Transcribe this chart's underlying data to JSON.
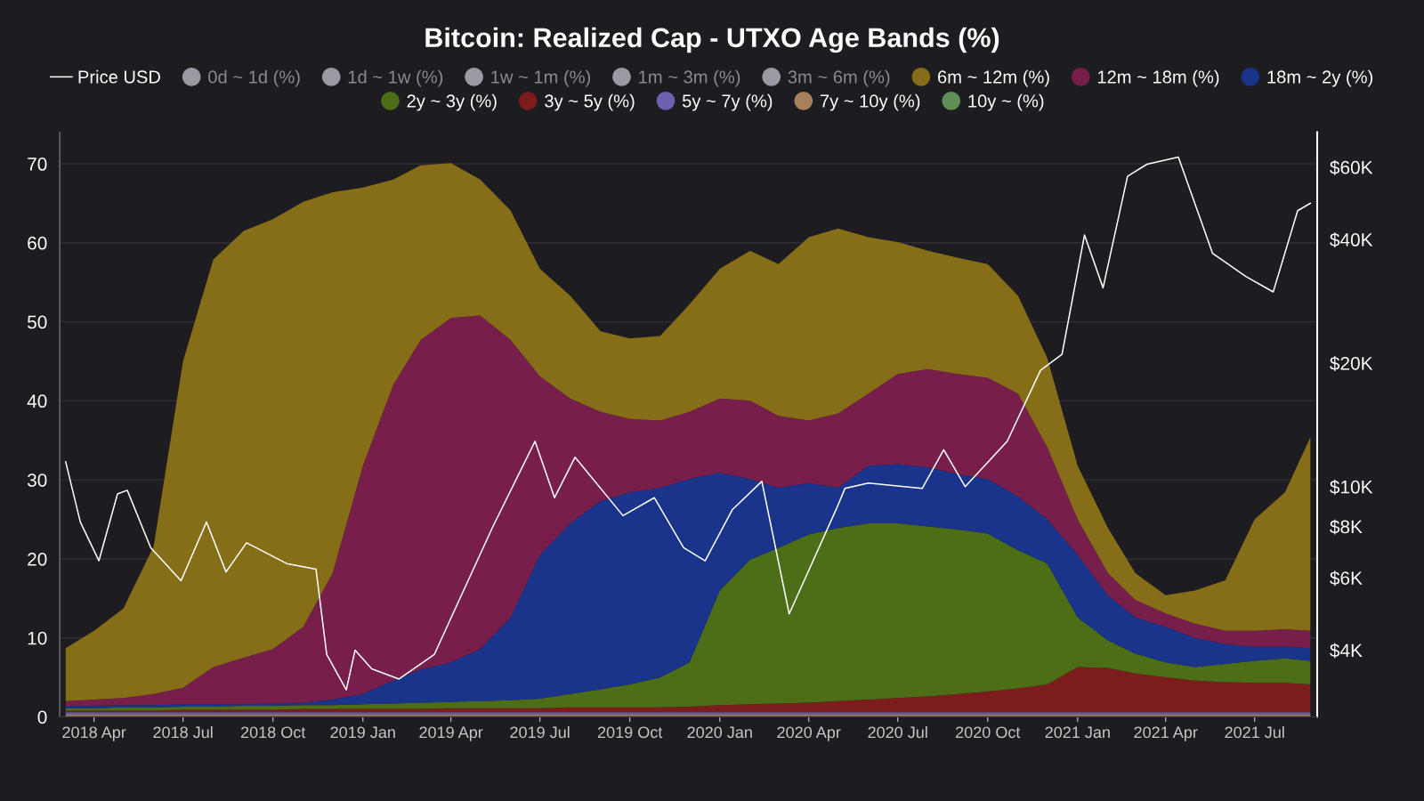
{
  "chart_data": {
    "type": "area",
    "stacked": true,
    "title": "Bitcoin: Realized Cap - UTXO Age Bands (%)",
    "x": [
      "2018-03-03",
      "2018-04-01",
      "2018-05-01",
      "2018-06-01",
      "2018-07-01",
      "2018-08-01",
      "2018-09-01",
      "2018-10-01",
      "2018-11-01",
      "2018-12-01",
      "2019-01-01",
      "2019-02-01",
      "2019-03-01",
      "2019-04-01",
      "2019-05-01",
      "2019-06-01",
      "2019-07-01",
      "2019-08-01",
      "2019-09-01",
      "2019-10-01",
      "2019-11-01",
      "2019-12-01",
      "2020-01-01",
      "2020-02-01",
      "2020-03-01",
      "2020-04-01",
      "2020-05-01",
      "2020-06-01",
      "2020-07-01",
      "2020-08-01",
      "2020-09-01",
      "2020-10-01",
      "2020-11-01",
      "2020-12-01",
      "2021-01-01",
      "2021-02-01",
      "2021-03-01",
      "2021-04-01",
      "2021-05-01",
      "2021-06-01",
      "2021-07-01",
      "2021-08-01",
      "2021-08-27"
    ],
    "series": [
      {
        "name": "10y ~ (%)",
        "color": "#5f8f55",
        "values": [
          0.1,
          0.1,
          0.1,
          0.1,
          0.1,
          0.1,
          0.1,
          0.1,
          0.1,
          0.1,
          0.1,
          0.1,
          0.1,
          0.1,
          0.1,
          0.1,
          0.1,
          0.1,
          0.1,
          0.1,
          0.1,
          0.1,
          0.1,
          0.1,
          0.1,
          0.1,
          0.1,
          0.1,
          0.1,
          0.1,
          0.1,
          0.1,
          0.1,
          0.1,
          0.1,
          0.1,
          0.1,
          0.1,
          0.1,
          0.1,
          0.1,
          0.1,
          0.1
        ]
      },
      {
        "name": "7y ~ 10y (%)",
        "color": "#a9805e",
        "values": [
          0.2,
          0.2,
          0.2,
          0.2,
          0.2,
          0.2,
          0.2,
          0.2,
          0.2,
          0.2,
          0.2,
          0.2,
          0.2,
          0.2,
          0.2,
          0.2,
          0.2,
          0.2,
          0.2,
          0.2,
          0.2,
          0.2,
          0.2,
          0.2,
          0.2,
          0.2,
          0.2,
          0.2,
          0.2,
          0.2,
          0.2,
          0.2,
          0.2,
          0.2,
          0.2,
          0.2,
          0.2,
          0.2,
          0.2,
          0.2,
          0.2,
          0.2,
          0.2
        ]
      },
      {
        "name": "5y ~ 7y (%)",
        "color": "#6f5fb0",
        "values": [
          0.3,
          0.3,
          0.3,
          0.3,
          0.3,
          0.3,
          0.3,
          0.3,
          0.3,
          0.3,
          0.3,
          0.3,
          0.3,
          0.3,
          0.3,
          0.3,
          0.3,
          0.3,
          0.3,
          0.3,
          0.3,
          0.3,
          0.3,
          0.3,
          0.3,
          0.3,
          0.3,
          0.3,
          0.3,
          0.3,
          0.3,
          0.3,
          0.3,
          0.3,
          0.3,
          0.3,
          0.3,
          0.3,
          0.3,
          0.3,
          0.3,
          0.3,
          0.3
        ]
      },
      {
        "name": "3y ~ 5y (%)",
        "color": "#7c1c1c",
        "values": [
          0.2,
          0.2,
          0.2,
          0.2,
          0.3,
          0.3,
          0.3,
          0.3,
          0.4,
          0.4,
          0.4,
          0.4,
          0.4,
          0.5,
          0.5,
          0.5,
          0.5,
          0.6,
          0.6,
          0.6,
          0.6,
          0.7,
          0.9,
          1.0,
          1.1,
          1.2,
          1.4,
          1.6,
          1.8,
          2.0,
          2.3,
          2.6,
          3.0,
          3.5,
          5.7,
          5.6,
          4.9,
          4.4,
          4.0,
          3.8,
          3.7,
          3.7,
          3.5
        ]
      },
      {
        "name": "2y ~ 3y (%)",
        "color": "#4b6e17",
        "values": [
          0.3,
          0.3,
          0.4,
          0.4,
          0.4,
          0.4,
          0.5,
          0.5,
          0.5,
          0.5,
          0.6,
          0.7,
          0.8,
          0.8,
          0.9,
          1.0,
          1.2,
          1.7,
          2.3,
          2.9,
          3.8,
          5.6,
          14.5,
          18.3,
          19.7,
          21.3,
          21.9,
          22.3,
          22.1,
          21.5,
          20.8,
          20.0,
          17.5,
          15.3,
          6.3,
          3.5,
          2.5,
          1.9,
          1.7,
          2.3,
          2.8,
          3.1,
          3.0
        ]
      },
      {
        "name": "18m ~ 2y (%)",
        "color": "#19348a",
        "values": [
          0.3,
          0.3,
          0.3,
          0.3,
          0.3,
          0.3,
          0.2,
          0.3,
          0.3,
          0.7,
          1.3,
          2.9,
          4.2,
          5.0,
          6.6,
          10.5,
          18.2,
          21.6,
          23.8,
          24.3,
          24.0,
          23.2,
          14.9,
          10.2,
          7.6,
          6.5,
          5.1,
          7.3,
          7.5,
          7.5,
          7.0,
          6.9,
          6.8,
          5.6,
          7.9,
          5.7,
          4.6,
          4.5,
          3.7,
          2.5,
          1.8,
          1.5,
          1.6
        ]
      },
      {
        "name": "12m ~ 18m (%)",
        "color": "#781e4b",
        "values": [
          0.6,
          0.8,
          0.9,
          1.4,
          2.1,
          4.7,
          5.9,
          6.9,
          9.6,
          16.0,
          28.9,
          37.4,
          41.7,
          43.6,
          42.2,
          35.1,
          22.6,
          15.8,
          11.3,
          9.3,
          8.5,
          8.5,
          9.4,
          9.9,
          9.1,
          7.9,
          9.4,
          9.1,
          11.4,
          12.4,
          12.7,
          12.8,
          13.0,
          9.1,
          4.5,
          2.8,
          2.2,
          1.7,
          1.8,
          1.7,
          2.0,
          2.2,
          2.2
        ]
      },
      {
        "name": "6m ~ 12m (%)",
        "color": "#866d18",
        "values": [
          6.7,
          8.7,
          11.3,
          18.7,
          41.3,
          51.6,
          54.0,
          54.4,
          53.8,
          48.2,
          35.2,
          26.0,
          22.1,
          19.6,
          17.2,
          16.4,
          13.6,
          13.0,
          10.2,
          10.2,
          10.7,
          13.6,
          16.4,
          19.0,
          19.2,
          23.2,
          23.4,
          19.8,
          16.7,
          15.0,
          14.7,
          14.4,
          12.4,
          11.3,
          6.8,
          5.7,
          3.4,
          2.3,
          4.2,
          6.4,
          14.1,
          17.3,
          24.5
        ]
      },
      {
        "name": "3m ~ 6m (%)",
        "color": "#9a9aa2",
        "values": [
          null,
          null,
          null,
          null,
          null,
          null,
          null,
          null,
          null,
          null,
          null,
          null,
          null,
          null,
          null,
          null,
          null,
          null,
          null,
          null,
          null,
          null,
          null,
          null,
          null,
          null,
          null,
          null,
          null,
          null,
          null,
          null,
          null,
          null,
          null,
          null,
          null,
          null,
          null,
          null,
          null,
          null,
          null
        ]
      },
      {
        "name": "1m ~ 3m (%)",
        "color": "#9a9aa2",
        "values": [
          null,
          null,
          null,
          null,
          null,
          null,
          null,
          null,
          null,
          null,
          null,
          null,
          null,
          null,
          null,
          null,
          null,
          null,
          null,
          null,
          null,
          null,
          null,
          null,
          null,
          null,
          null,
          null,
          null,
          null,
          null,
          null,
          null,
          null,
          null,
          null,
          null,
          null,
          null,
          null,
          null,
          null,
          null
        ]
      },
      {
        "name": "1w ~ 1m (%)",
        "color": "#9a9aa2",
        "values": [
          null,
          null,
          null,
          null,
          null,
          null,
          null,
          null,
          null,
          null,
          null,
          null,
          null,
          null,
          null,
          null,
          null,
          null,
          null,
          null,
          null,
          null,
          null,
          null,
          null,
          null,
          null,
          null,
          null,
          null,
          null,
          null,
          null,
          null,
          null,
          null,
          null,
          null,
          null,
          null,
          null,
          null,
          null
        ]
      },
      {
        "name": "1d ~ 1w (%)",
        "color": "#9a9aa2",
        "values": [
          null,
          null,
          null,
          null,
          null,
          null,
          null,
          null,
          null,
          null,
          null,
          null,
          null,
          null,
          null,
          null,
          null,
          null,
          null,
          null,
          null,
          null,
          null,
          null,
          null,
          null,
          null,
          null,
          null,
          null,
          null,
          null,
          null,
          null,
          null,
          null,
          null,
          null,
          null,
          null,
          null,
          null,
          null
        ]
      },
      {
        "name": "0d ~ 1d (%)",
        "color": "#9a9aa2",
        "values": [
          null,
          null,
          null,
          null,
          null,
          null,
          null,
          null,
          null,
          null,
          null,
          null,
          null,
          null,
          null,
          null,
          null,
          null,
          null,
          null,
          null,
          null,
          null,
          null,
          null,
          null,
          null,
          null,
          null,
          null,
          null,
          null,
          null,
          null,
          null,
          null,
          null,
          null,
          null,
          null,
          null,
          null,
          null
        ]
      },
      {
        "name": "Price USD",
        "type": "line",
        "axis": "y2",
        "color": "#ffffff",
        "x": [
          "2018-03-03",
          "2018-03-18",
          "2018-04-06",
          "2018-04-25",
          "2018-05-05",
          "2018-05-29",
          "2018-06-29",
          "2018-07-25",
          "2018-08-14",
          "2018-09-04",
          "2018-10-15",
          "2018-11-14",
          "2018-11-25",
          "2018-12-15",
          "2018-12-24",
          "2019-01-10",
          "2019-02-07",
          "2019-03-15",
          "2019-04-03",
          "2019-05-14",
          "2019-06-26",
          "2019-07-16",
          "2019-08-06",
          "2019-09-24",
          "2019-10-26",
          "2019-11-25",
          "2019-12-17",
          "2020-01-14",
          "2020-02-13",
          "2020-03-12",
          "2020-04-29",
          "2020-05-08",
          "2020-06-01",
          "2020-07-26",
          "2020-08-17",
          "2020-09-08",
          "2020-10-21",
          "2020-11-24",
          "2020-12-16",
          "2021-01-08",
          "2021-01-27",
          "2021-02-21",
          "2021-03-13",
          "2021-04-14",
          "2021-05-19",
          "2021-06-22",
          "2021-07-20",
          "2021-08-14",
          "2021-08-27"
        ],
        "values": [
          11500,
          8200,
          6600,
          9600,
          9800,
          7100,
          5900,
          8200,
          6200,
          7300,
          6500,
          6300,
          3900,
          3200,
          4000,
          3600,
          3400,
          3900,
          4900,
          8000,
          12900,
          9400,
          11800,
          8500,
          9400,
          7100,
          6600,
          8800,
          10300,
          4900,
          8800,
          9900,
          10200,
          9900,
          12300,
          10000,
          12900,
          19200,
          21000,
          41000,
          30500,
          57000,
          61000,
          63500,
          37000,
          32500,
          29800,
          47000,
          49000
        ]
      }
    ],
    "xlim": [
      "2018-02-25",
      "2021-09-03"
    ],
    "xticks": [
      {
        "value": "2018-04-01",
        "label": "2018 Apr"
      },
      {
        "value": "2018-07-01",
        "label": "2018 Jul"
      },
      {
        "value": "2018-10-01",
        "label": "2018 Oct"
      },
      {
        "value": "2019-01-01",
        "label": "2019 Jan"
      },
      {
        "value": "2019-04-01",
        "label": "2019 Apr"
      },
      {
        "value": "2019-07-01",
        "label": "2019 Jul"
      },
      {
        "value": "2019-10-01",
        "label": "2019 Oct"
      },
      {
        "value": "2020-01-01",
        "label": "2020 Jan"
      },
      {
        "value": "2020-04-01",
        "label": "2020 Apr"
      },
      {
        "value": "2020-07-01",
        "label": "2020 Jul"
      },
      {
        "value": "2020-10-01",
        "label": "2020 Oct"
      },
      {
        "value": "2021-01-01",
        "label": "2021 Jan"
      },
      {
        "value": "2021-04-01",
        "label": "2021 Apr"
      },
      {
        "value": "2021-07-01",
        "label": "2021 Jul"
      }
    ],
    "ylim": [
      0,
      74
    ],
    "yticks": [
      0,
      10,
      20,
      30,
      40,
      50,
      60,
      70
    ],
    "log": "y2",
    "y2lim": [
      2750,
      73000
    ],
    "y2ticks": [
      {
        "value": 4000,
        "label": "$4K"
      },
      {
        "value": 6000,
        "label": "$6K"
      },
      {
        "value": 8000,
        "label": "$8K"
      },
      {
        "value": 10000,
        "label": "$10K"
      },
      {
        "value": 20000,
        "label": "$20K"
      },
      {
        "value": 40000,
        "label": "$40K"
      },
      {
        "value": 60000,
        "label": "$60K"
      }
    ],
    "grid": "y",
    "legend": "top"
  }
}
